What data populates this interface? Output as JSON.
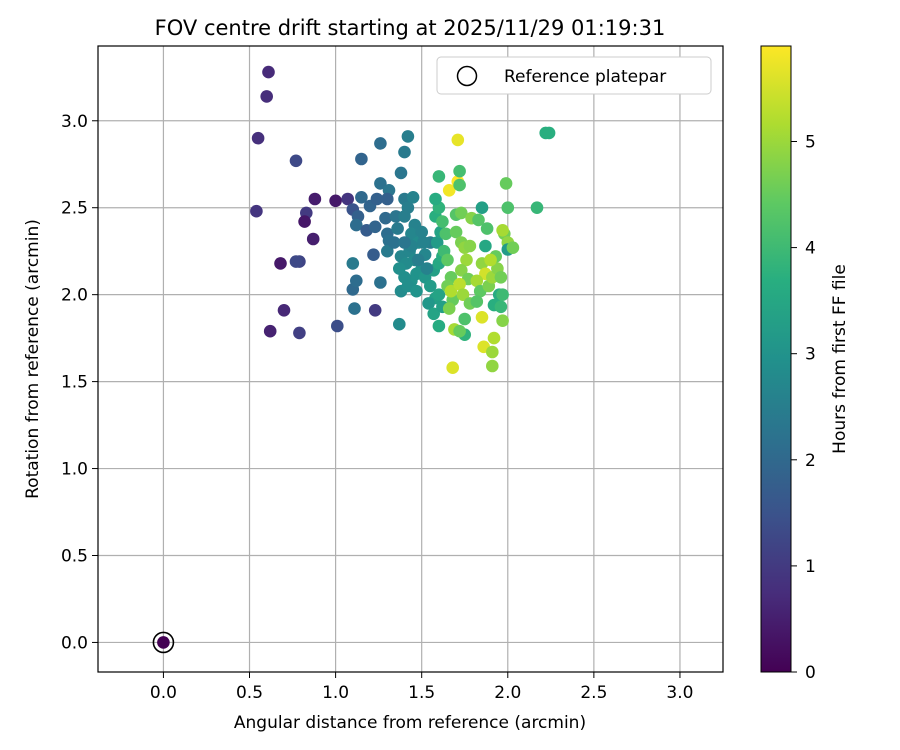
{
  "chart_data": {
    "type": "scatter",
    "title": "FOV centre drift starting at 2025/11/29 01:19:31",
    "xlabel": "Angular distance from reference (arcmin)",
    "ylabel": "Rotation from reference (arcmin)",
    "xlim": [
      -0.38,
      3.25
    ],
    "ylim": [
      -0.17,
      3.43
    ],
    "xticks": [
      0.0,
      0.5,
      1.0,
      1.5,
      2.0,
      2.5,
      3.0
    ],
    "yticks": [
      0.0,
      0.5,
      1.0,
      1.5,
      2.0,
      2.5,
      3.0
    ],
    "xtick_labels": [
      "0.0",
      "0.5",
      "1.0",
      "1.5",
      "2.0",
      "2.5",
      "3.0"
    ],
    "ytick_labels": [
      "0.0",
      "0.5",
      "1.0",
      "1.5",
      "2.0",
      "2.5",
      "3.0"
    ],
    "grid": true,
    "legend": {
      "position": "top-right",
      "entries": [
        "Reference platepar"
      ]
    },
    "reference_point": {
      "x": 0.0,
      "y": 0.0,
      "label": "Reference platepar"
    },
    "colorbar": {
      "label": "Hours from first FF file",
      "range": [
        0,
        5.9
      ],
      "ticks": [
        0,
        1,
        2,
        3,
        4,
        5
      ],
      "tick_labels": [
        "0",
        "1",
        "2",
        "3",
        "4",
        "5"
      ],
      "colormap": "viridis"
    },
    "points": [
      [
        0.0,
        0.0,
        0.0
      ],
      [
        0.61,
        3.28,
        0.7
      ],
      [
        0.6,
        3.14,
        0.75
      ],
      [
        0.55,
        2.9,
        0.8
      ],
      [
        0.77,
        2.77,
        1.3
      ],
      [
        0.54,
        2.48,
        0.9
      ],
      [
        0.88,
        2.55,
        0.45
      ],
      [
        1.0,
        2.54,
        0.4
      ],
      [
        0.83,
        2.47,
        1.0
      ],
      [
        0.82,
        2.42,
        0.35
      ],
      [
        0.87,
        2.32,
        0.5
      ],
      [
        0.68,
        2.18,
        0.4
      ],
      [
        0.79,
        2.19,
        1.2
      ],
      [
        0.77,
        2.19,
        1.3
      ],
      [
        0.7,
        1.91,
        0.65
      ],
      [
        0.62,
        1.79,
        0.55
      ],
      [
        0.79,
        1.78,
        1.1
      ],
      [
        1.01,
        1.82,
        1.4
      ],
      [
        1.23,
        1.91,
        1.0
      ],
      [
        1.07,
        2.55,
        0.9
      ],
      [
        1.1,
        2.49,
        1.5
      ],
      [
        1.13,
        2.45,
        1.8
      ],
      [
        1.15,
        2.78,
        1.9
      ],
      [
        1.26,
        2.87,
        2.1
      ],
      [
        1.38,
        2.7,
        2.3
      ],
      [
        1.4,
        2.82,
        2.4
      ],
      [
        1.42,
        2.91,
        2.5
      ],
      [
        1.26,
        2.64,
        2.2
      ],
      [
        1.31,
        2.6,
        2.3
      ],
      [
        1.15,
        2.56,
        2.0
      ],
      [
        1.2,
        2.51,
        1.9
      ],
      [
        1.24,
        2.55,
        1.8
      ],
      [
        1.3,
        2.55,
        1.8
      ],
      [
        1.12,
        2.4,
        2.1
      ],
      [
        1.18,
        2.37,
        1.7
      ],
      [
        1.23,
        2.39,
        1.9
      ],
      [
        1.29,
        2.44,
        2.0
      ],
      [
        1.3,
        2.35,
        2.1
      ],
      [
        1.31,
        2.31,
        2.2
      ],
      [
        1.36,
        2.38,
        2.4
      ],
      [
        1.35,
        2.45,
        2.3
      ],
      [
        1.4,
        2.55,
        2.4
      ],
      [
        1.42,
        2.5,
        2.5
      ],
      [
        1.45,
        2.56,
        2.6
      ],
      [
        1.4,
        2.45,
        2.5
      ],
      [
        1.46,
        2.4,
        2.6
      ],
      [
        1.44,
        2.35,
        2.7
      ],
      [
        1.48,
        2.3,
        2.8
      ],
      [
        1.5,
        2.36,
        2.6
      ],
      [
        1.38,
        2.22,
        2.7
      ],
      [
        1.41,
        2.18,
        2.8
      ],
      [
        1.43,
        2.25,
        2.7
      ],
      [
        1.46,
        2.2,
        2.8
      ],
      [
        1.5,
        2.15,
        2.9
      ],
      [
        1.47,
        2.12,
        3.0
      ],
      [
        1.44,
        2.08,
        3.0
      ],
      [
        1.4,
        2.1,
        2.9
      ],
      [
        1.37,
        2.15,
        2.9
      ],
      [
        1.38,
        2.02,
        2.8
      ],
      [
        1.42,
        2.05,
        2.9
      ],
      [
        1.47,
        2.02,
        3.0
      ],
      [
        1.52,
        2.23,
        2.7
      ],
      [
        1.55,
        2.3,
        2.5
      ],
      [
        1.52,
        2.1,
        3.1
      ],
      [
        1.55,
        2.05,
        3.2
      ],
      [
        1.58,
        1.98,
        3.3
      ],
      [
        1.54,
        1.95,
        3.1
      ],
      [
        1.57,
        1.89,
        3.4
      ],
      [
        1.6,
        1.82,
        3.6
      ],
      [
        1.62,
        1.93,
        3.3
      ],
      [
        1.6,
        2.0,
        3.4
      ],
      [
        1.57,
        2.14,
        3.3
      ],
      [
        1.6,
        2.18,
        3.5
      ],
      [
        1.62,
        2.22,
        3.6
      ],
      [
        1.59,
        2.3,
        3.2
      ],
      [
        1.61,
        2.36,
        3.4
      ],
      [
        1.58,
        2.45,
        3.7
      ],
      [
        1.6,
        2.5,
        3.8
      ],
      [
        1.58,
        2.55,
        3.6
      ],
      [
        1.62,
        2.42,
        4.1
      ],
      [
        1.64,
        2.35,
        4.2
      ],
      [
        1.63,
        2.25,
        4.0
      ],
      [
        1.65,
        2.2,
        4.4
      ],
      [
        1.67,
        2.1,
        4.5
      ],
      [
        1.65,
        2.05,
        4.6
      ],
      [
        1.68,
        1.97,
        4.5
      ],
      [
        1.66,
        1.92,
        4.7
      ],
      [
        1.69,
        1.8,
        5.1
      ],
      [
        1.68,
        1.58,
        5.6
      ],
      [
        1.67,
        2.02,
        5.2
      ],
      [
        1.66,
        2.6,
        5.8
      ],
      [
        1.71,
        2.65,
        5.9
      ],
      [
        1.71,
        2.89,
        5.7
      ],
      [
        1.72,
        2.71,
        4.1
      ],
      [
        1.72,
        2.63,
        4.2
      ],
      [
        1.6,
        2.68,
        3.9
      ],
      [
        1.7,
        2.46,
        4.3
      ],
      [
        1.73,
        2.47,
        4.6
      ],
      [
        1.7,
        2.36,
        4.5
      ],
      [
        1.73,
        2.3,
        4.7
      ],
      [
        1.75,
        2.27,
        4.9
      ],
      [
        1.78,
        2.28,
        4.8
      ],
      [
        1.76,
        2.2,
        5.0
      ],
      [
        1.73,
        2.14,
        4.8
      ],
      [
        1.77,
        2.09,
        4.6
      ],
      [
        1.72,
        2.06,
        5.3
      ],
      [
        1.74,
        2.0,
        5.0
      ],
      [
        1.78,
        1.95,
        4.6
      ],
      [
        1.75,
        1.86,
        4.2
      ],
      [
        1.75,
        1.77,
        3.8
      ],
      [
        1.72,
        1.79,
        4.5
      ],
      [
        1.79,
        2.44,
        4.8
      ],
      [
        1.85,
        2.5,
        3.3
      ],
      [
        1.83,
        2.43,
        4.3
      ],
      [
        1.88,
        2.38,
        4.2
      ],
      [
        1.87,
        2.28,
        3.5
      ],
      [
        1.85,
        2.18,
        4.9
      ],
      [
        1.87,
        2.12,
        5.5
      ],
      [
        1.82,
        2.08,
        5.1
      ],
      [
        1.84,
        2.02,
        4.4
      ],
      [
        1.89,
        2.05,
        4.7
      ],
      [
        1.91,
        2.1,
        5.0
      ],
      [
        1.94,
        2.15,
        4.8
      ],
      [
        1.96,
        2.1,
        4.6
      ],
      [
        1.93,
        2.22,
        4.5
      ],
      [
        1.9,
        2.2,
        5.2
      ],
      [
        1.95,
        2.0,
        3.6
      ],
      [
        1.97,
        2.0,
        4.0
      ],
      [
        1.92,
        1.94,
        3.7
      ],
      [
        1.96,
        1.93,
        3.9
      ],
      [
        1.97,
        1.85,
        4.8
      ],
      [
        1.85,
        1.87,
        5.6
      ],
      [
        1.86,
        1.7,
        5.6
      ],
      [
        1.92,
        1.75,
        5.2
      ],
      [
        1.91,
        1.67,
        5.0
      ],
      [
        1.91,
        1.59,
        4.9
      ],
      [
        1.82,
        1.96,
        4.3
      ],
      [
        1.98,
        2.35,
        4.6
      ],
      [
        2.0,
        2.3,
        4.9
      ],
      [
        1.97,
        2.37,
        5.1
      ],
      [
        2.0,
        2.26,
        3.2
      ],
      [
        2.03,
        2.27,
        4.6
      ],
      [
        2.0,
        2.5,
        4.2
      ],
      [
        1.99,
        2.64,
        4.5
      ],
      [
        2.17,
        2.5,
        3.9
      ],
      [
        2.22,
        2.93,
        3.7
      ],
      [
        2.24,
        2.93,
        3.7
      ],
      [
        1.1,
        2.18,
        2.4
      ],
      [
        1.1,
        2.03,
        2.0
      ],
      [
        1.12,
        2.08,
        2.1
      ],
      [
        1.11,
        1.92,
        2.2
      ],
      [
        1.22,
        2.23,
        1.7
      ],
      [
        1.26,
        2.07,
        2.2
      ],
      [
        1.37,
        1.83,
        2.8
      ],
      [
        1.3,
        2.25,
        2.4
      ],
      [
        1.34,
        2.3,
        2.2
      ],
      [
        1.51,
        2.3,
        2.6
      ],
      [
        1.48,
        2.2,
        2.5
      ],
      [
        1.53,
        2.15,
        2.6
      ],
      [
        1.44,
        2.28,
        2.6
      ],
      [
        1.4,
        2.3,
        2.3
      ]
    ]
  }
}
